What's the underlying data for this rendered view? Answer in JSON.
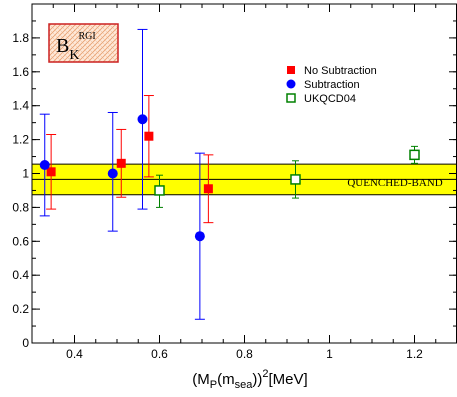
{
  "chart_data": {
    "type": "scatter",
    "xlabel": "(M",
    "xlabel_sub1": "P",
    "xlabel_mid": "(m",
    "xlabel_sub2": "sea",
    "xlabel_end": "))",
    "xlabel_sup": "2",
    "xlabel_unit": "[MeV]",
    "ylabel": "",
    "xlim": [
      0.3,
      1.3
    ],
    "ylim": [
      0,
      2.0
    ],
    "x_ticks": [
      0.4,
      0.6,
      0.8,
      1,
      1.2
    ],
    "x_tick_labels": [
      "0.4",
      "0.6",
      "0.8",
      "1",
      "1.2"
    ],
    "y_ticks": [
      0,
      0.2,
      0.4,
      0.6,
      0.8,
      1,
      1.2,
      1.4,
      1.6,
      1.8
    ],
    "y_tick_labels": [
      "0",
      "0.2",
      "0.4",
      "0.6",
      "0.8",
      "1",
      "1.2",
      "1.4",
      "1.6",
      "1.8"
    ],
    "grid": false,
    "legend_position": "top-right",
    "inset_label": {
      "main": "B",
      "sub": "K",
      "sup": "RGI"
    },
    "band": {
      "label": "QUENCHED-BAND",
      "ymin": 0.875,
      "ymax": 1.055,
      "center": 0.965,
      "color": "#ffff00"
    },
    "series": [
      {
        "name": "No Subtraction",
        "marker": "filled-square",
        "color": "#ff0000",
        "points": [
          {
            "x": 0.345,
            "y": 1.01,
            "ylo": 0.79,
            "yhi": 1.23
          },
          {
            "x": 0.51,
            "y": 1.06,
            "ylo": 0.86,
            "yhi": 1.26
          },
          {
            "x": 0.575,
            "y": 1.22,
            "ylo": 0.98,
            "yhi": 1.46
          },
          {
            "x": 0.715,
            "y": 0.91,
            "ylo": 0.71,
            "yhi": 1.11
          }
        ]
      },
      {
        "name": "Subtraction",
        "marker": "filled-circle",
        "color": "#0000ff",
        "points": [
          {
            "x": 0.33,
            "y": 1.05,
            "ylo": 0.75,
            "yhi": 1.35
          },
          {
            "x": 0.49,
            "y": 1.0,
            "ylo": 0.66,
            "yhi": 1.36
          },
          {
            "x": 0.56,
            "y": 1.32,
            "ylo": 0.79,
            "yhi": 1.85
          },
          {
            "x": 0.695,
            "y": 0.63,
            "ylo": 0.14,
            "yhi": 1.12
          }
        ]
      },
      {
        "name": "UKQCD04",
        "marker": "open-square",
        "color": "#008000",
        "points": [
          {
            "x": 0.6,
            "y": 0.9,
            "ylo": 0.8,
            "yhi": 0.99
          },
          {
            "x": 0.92,
            "y": 0.965,
            "ylo": 0.855,
            "yhi": 1.075
          },
          {
            "x": 1.2,
            "y": 1.11,
            "ylo": 1.06,
            "yhi": 1.16
          }
        ]
      }
    ]
  }
}
